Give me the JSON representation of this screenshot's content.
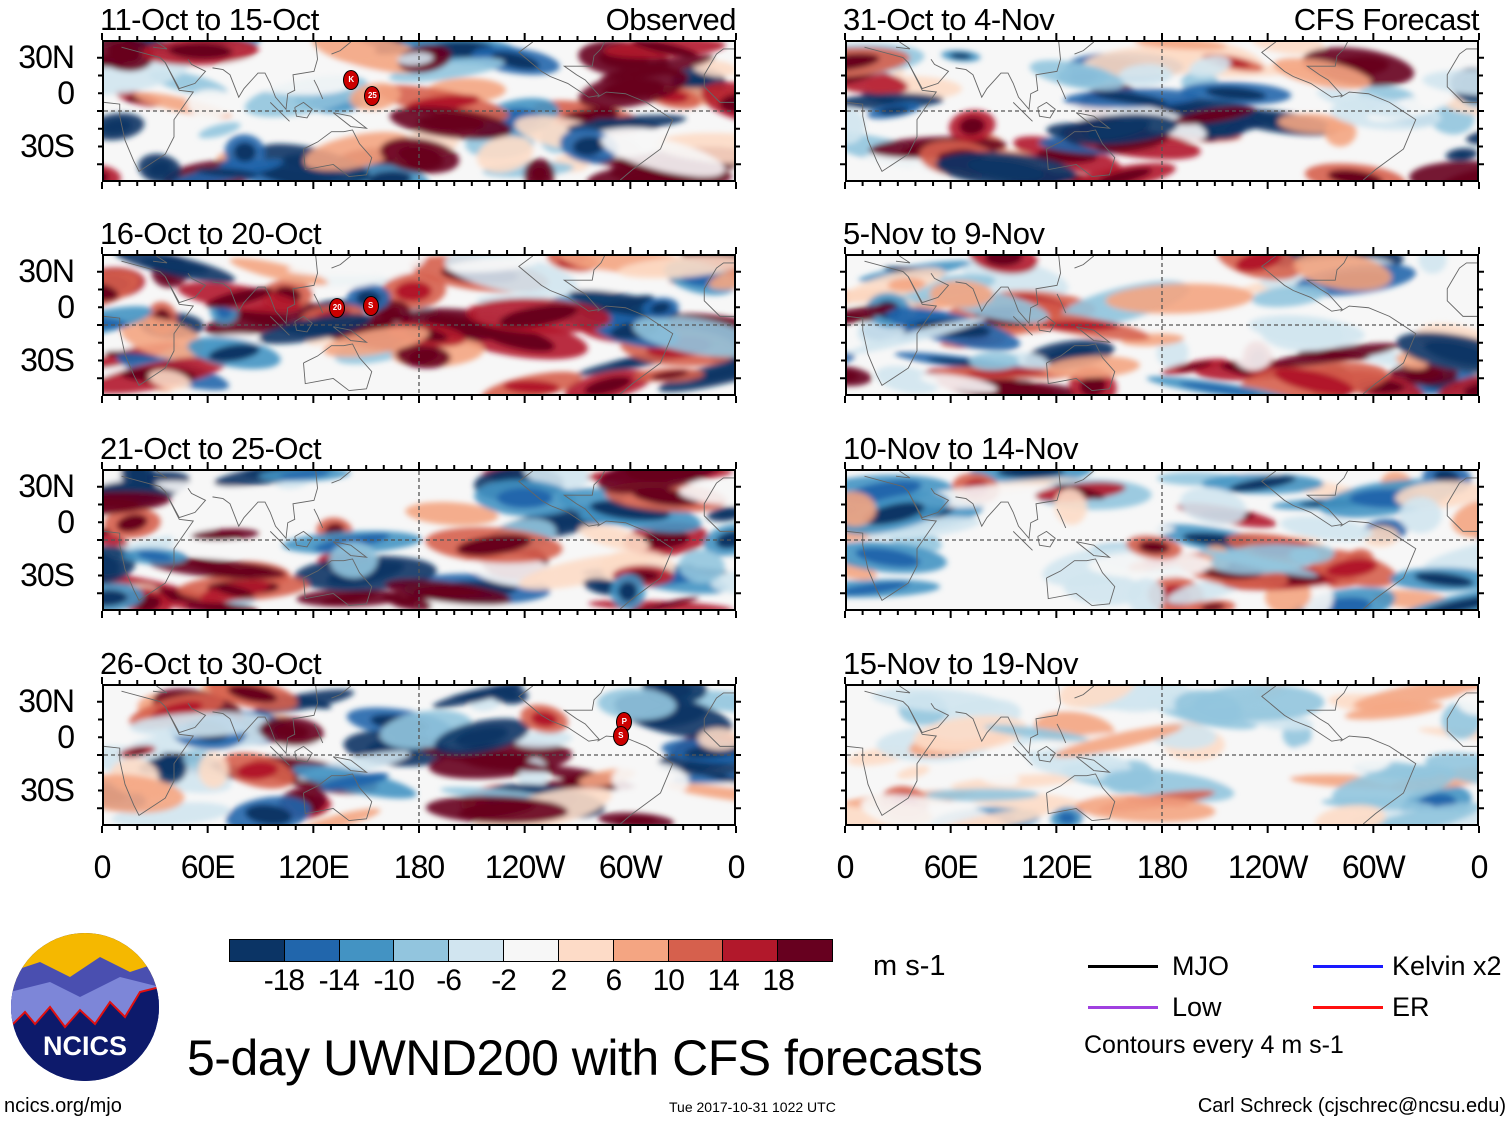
{
  "title": "5-day UWND200 with CFS forecasts",
  "footer": {
    "site": "ncics.org/mjo",
    "timestamp": "Tue 2017-10-31 1022 UTC",
    "author": "Carl Schreck (cjschrec@ncsu.edu)"
  },
  "logo": {
    "text": "NCICS"
  },
  "columns": [
    {
      "label": "Observed",
      "panels": [
        {
          "title": "11-Oct to 15-Oct",
          "storms": [
            "K",
            "25"
          ]
        },
        {
          "title": "16-Oct to 20-Oct",
          "storms": [
            "20",
            "S"
          ]
        },
        {
          "title": "21-Oct to 25-Oct",
          "storms": []
        },
        {
          "title": "26-Oct to 30-Oct",
          "storms": [
            "P",
            "S"
          ]
        }
      ]
    },
    {
      "label": "CFS Forecast",
      "panels": [
        {
          "title": "31-Oct to 4-Nov",
          "storms": []
        },
        {
          "title": "5-Nov to 9-Nov",
          "storms": []
        },
        {
          "title": "10-Nov to 14-Nov",
          "storms": []
        },
        {
          "title": "15-Nov to 19-Nov",
          "storms": []
        }
      ]
    }
  ],
  "lat_labels": [
    "30N",
    "0",
    "30S"
  ],
  "lon_labels": [
    "0",
    "60E",
    "120E",
    "180",
    "120W",
    "60W",
    "0"
  ],
  "colorbar": {
    "colors": [
      "#0b3465",
      "#2166ac",
      "#4393c3",
      "#92c5de",
      "#d1e5f0",
      "#f7f7f7",
      "#fddbc7",
      "#f4a582",
      "#d6604d",
      "#b2182b",
      "#67001f"
    ],
    "labels": [
      "-18",
      "-14",
      "-10",
      "-6",
      "-2",
      "2",
      "6",
      "10",
      "14",
      "18"
    ],
    "units": "m s-1"
  },
  "legend": {
    "items": [
      {
        "label": "MJO",
        "color": "#000000"
      },
      {
        "label": "Kelvin x2",
        "color": "#1a1aff"
      },
      {
        "label": "Low",
        "color": "#a040e0"
      },
      {
        "label": "ER",
        "color": "#ff1010"
      }
    ],
    "note": "Contours every 4 m s-1"
  }
}
